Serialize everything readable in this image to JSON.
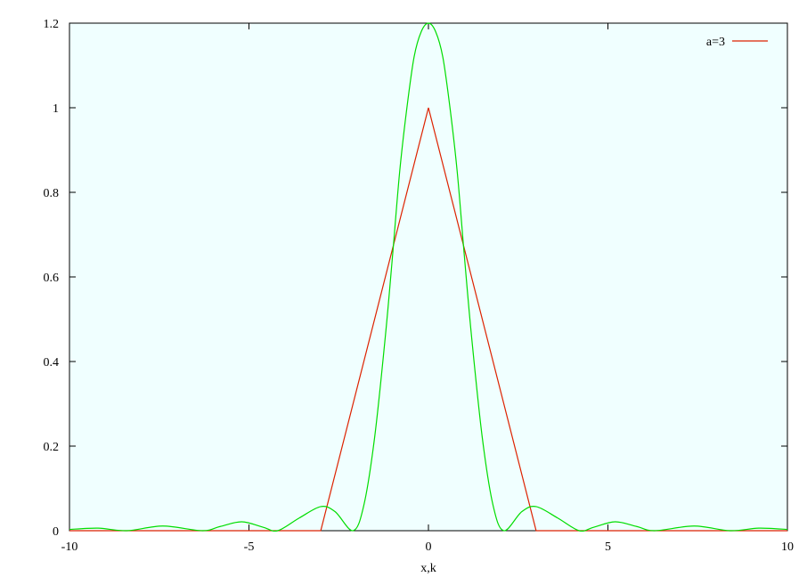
{
  "chart_data": {
    "type": "line",
    "title": "",
    "xlabel": "x,k",
    "ylabel": "",
    "xlim": [
      -10,
      10
    ],
    "ylim": [
      0,
      1.2
    ],
    "xticks": [
      -10,
      -5,
      0,
      5,
      10
    ],
    "xtick_labels": [
      "-10",
      "-5",
      "0",
      "5",
      "10"
    ],
    "yticks": [
      0,
      0.2,
      0.4,
      0.6,
      0.8,
      1,
      1.2
    ],
    "ytick_labels": [
      "0",
      "0.2",
      "0.4",
      "0.6",
      "0.8",
      "1",
      "1.2"
    ],
    "background_color": "#f0ffff",
    "grid": false,
    "legend_position": "top-right",
    "series": [
      {
        "name": "a=3",
        "color": "#dd2200",
        "x": [
          -10,
          -3,
          0,
          3,
          10
        ],
        "y": [
          0,
          0,
          1,
          0,
          0
        ]
      },
      {
        "color": "#00dd00",
        "x": [
          -10,
          -9.2,
          -8.4,
          -7.4,
          -6.3,
          -5.8,
          -5.2,
          -4.6,
          -4.2,
          -3.6,
          -3.0,
          -2.6,
          -2.1,
          -1.8,
          -1.5,
          -1.2,
          -1.0,
          -0.8,
          -0.6,
          -0.4,
          -0.2,
          0,
          0.2,
          0.4,
          0.6,
          0.8,
          1.0,
          1.2,
          1.5,
          1.8,
          2.1,
          2.6,
          3.0,
          3.6,
          4.2,
          4.6,
          5.2,
          5.8,
          6.3,
          7.4,
          8.4,
          9.2,
          10
        ],
        "y": [
          0.003,
          0.006,
          0.0,
          0.011,
          0.0,
          0.01,
          0.021,
          0.008,
          0.0,
          0.03,
          0.057,
          0.045,
          0.0,
          0.06,
          0.22,
          0.46,
          0.65,
          0.85,
          1.0,
          1.12,
          1.18,
          1.2,
          1.18,
          1.12,
          1.0,
          0.85,
          0.65,
          0.46,
          0.22,
          0.06,
          0.0,
          0.045,
          0.057,
          0.03,
          0.0,
          0.008,
          0.021,
          0.01,
          0.0,
          0.011,
          0.0,
          0.006,
          0.003
        ]
      }
    ]
  }
}
